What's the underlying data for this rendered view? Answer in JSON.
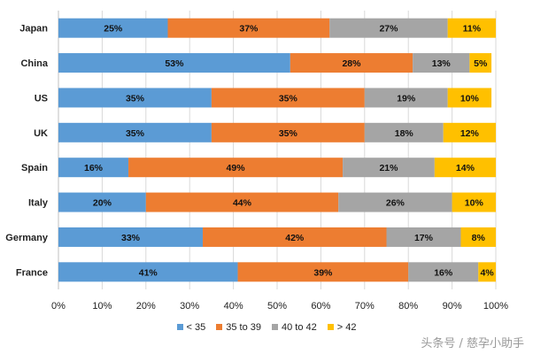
{
  "chart_data": {
    "type": "bar",
    "orientation": "horizontal",
    "stacked": true,
    "title": "",
    "xlabel": "",
    "ylabel": "",
    "xlim": [
      0,
      100
    ],
    "x_ticks": [
      "0%",
      "10%",
      "20%",
      "30%",
      "40%",
      "50%",
      "60%",
      "70%",
      "80%",
      "90%",
      "100%"
    ],
    "categories": [
      "Japan",
      "China",
      "US",
      "UK",
      "Spain",
      "Italy",
      "Germany",
      "France"
    ],
    "series": [
      {
        "name": "< 35",
        "color": "#5B9BD5",
        "values": [
          25,
          53,
          35,
          35,
          16,
          20,
          33,
          41
        ]
      },
      {
        "name": "35 to 39",
        "color": "#ED7D31",
        "values": [
          37,
          28,
          35,
          35,
          49,
          44,
          42,
          39
        ]
      },
      {
        "name": "40 to 42",
        "color": "#A5A5A5",
        "values": [
          27,
          13,
          19,
          18,
          21,
          26,
          17,
          16
        ]
      },
      {
        "name": "> 42",
        "color": "#FFC000",
        "values": [
          11,
          5,
          10,
          12,
          14,
          10,
          8,
          4
        ]
      }
    ],
    "grid": true,
    "legend_position": "bottom"
  },
  "watermark": "头条号 / 慈孕小助手"
}
